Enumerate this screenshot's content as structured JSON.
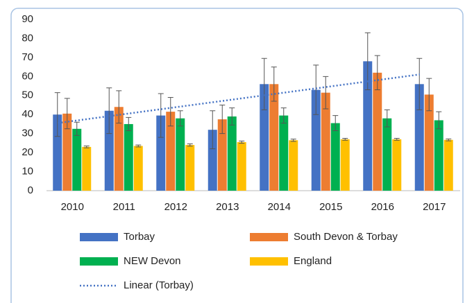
{
  "chart_data": {
    "type": "bar",
    "categories": [
      "2010",
      "2011",
      "2012",
      "2013",
      "2014",
      "2015",
      "2016",
      "2017"
    ],
    "series": [
      {
        "name": "Torbay",
        "color": "#4472c4",
        "values": [
          40,
          42,
          39.5,
          32,
          56,
          53,
          68,
          56
        ],
        "errors": [
          11.5,
          12,
          11.5,
          10,
          13.5,
          13,
          15,
          13.5
        ],
        "trendline": {
          "name": "Linear (Torbay)",
          "type": "linear"
        }
      },
      {
        "name": "South Devon & Torbay",
        "color": "#ed7d31",
        "values": [
          40.5,
          44,
          41.5,
          37.5,
          56,
          51.5,
          62,
          50.5
        ],
        "errors": [
          8,
          8.5,
          7.5,
          7.5,
          9,
          8.5,
          9,
          8.5
        ]
      },
      {
        "name": "NEW Devon",
        "color": "#00b050",
        "values": [
          32.5,
          35,
          38,
          39,
          39.5,
          35.5,
          38,
          37
        ],
        "errors": [
          3.5,
          3.5,
          4,
          4.5,
          4,
          4,
          4.5,
          4.5
        ]
      },
      {
        "name": "England",
        "color": "#ffc000",
        "values": [
          23,
          23.5,
          24,
          25.5,
          26.5,
          27,
          27,
          26.7
        ],
        "errors": [
          0.5,
          0.5,
          0.6,
          0.6,
          0.6,
          0.5,
          0.5,
          0.5
        ]
      }
    ],
    "ylim": [
      0,
      90
    ],
    "yticks": [
      0,
      10,
      20,
      30,
      40,
      50,
      60,
      70,
      80,
      90
    ],
    "grid": false,
    "legend": "bottom"
  }
}
